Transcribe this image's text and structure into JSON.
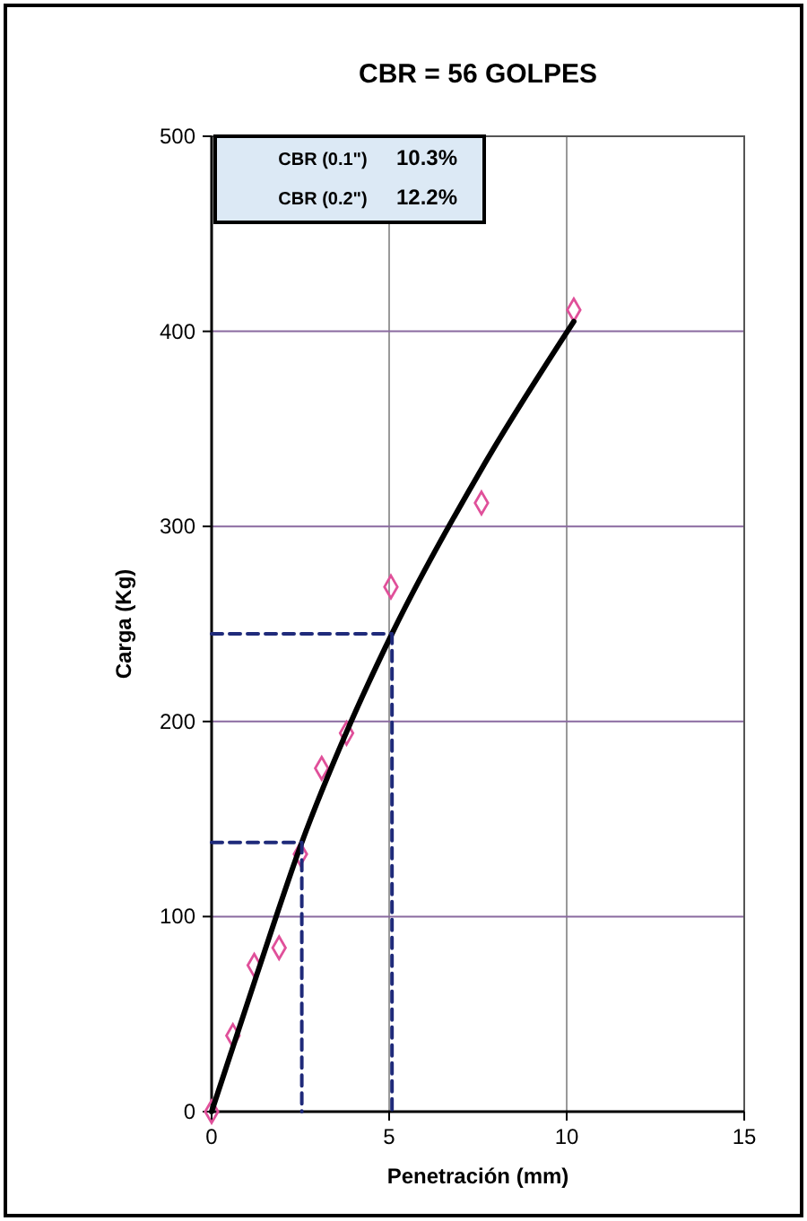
{
  "chart_data": {
    "type": "scatter",
    "title": "CBR = 56 GOLPES",
    "xlabel": "Penetración (mm)",
    "ylabel": "Carga (Kg)",
    "xlim": [
      0,
      15
    ],
    "xticks": [
      0,
      5,
      10,
      15
    ],
    "ylim": [
      0,
      500
    ],
    "yticks": [
      0,
      100,
      200,
      300,
      400,
      500
    ],
    "grid": true,
    "annotations": [
      "CBR (0.1\")",
      "10.3%",
      "CBR (0.2\")",
      "12.2%"
    ],
    "series": [
      {
        "color": "#e0509a",
        "marker": "diamond",
        "x": [
          0,
          0.6,
          1.2,
          1.9,
          2.5,
          3.1,
          3.8,
          5.05,
          7.6,
          10.2
        ],
        "values": [
          0,
          39,
          75,
          84,
          132,
          176,
          194,
          269,
          312,
          411
        ]
      },
      {
        "type": "line",
        "color": "#000000",
        "marker": "none",
        "line_style": "solid",
        "x": [
          0,
          1.27,
          2.54,
          3.81,
          5.08,
          7.62,
          10.2
        ],
        "values": [
          0,
          70,
          138,
          195,
          245,
          330,
          405
        ]
      },
      {
        "type": "line",
        "color": "#1f2a7a",
        "marker": "none",
        "line_style": "dashed",
        "x": [
          0,
          2.54,
          2.54
        ],
        "values": [
          138,
          138,
          0
        ]
      },
      {
        "type": "line",
        "color": "#1f2a7a",
        "marker": "none",
        "line_style": "dashed",
        "x": [
          0,
          5.08,
          5.08
        ],
        "values": [
          245,
          245,
          0
        ]
      }
    ]
  }
}
